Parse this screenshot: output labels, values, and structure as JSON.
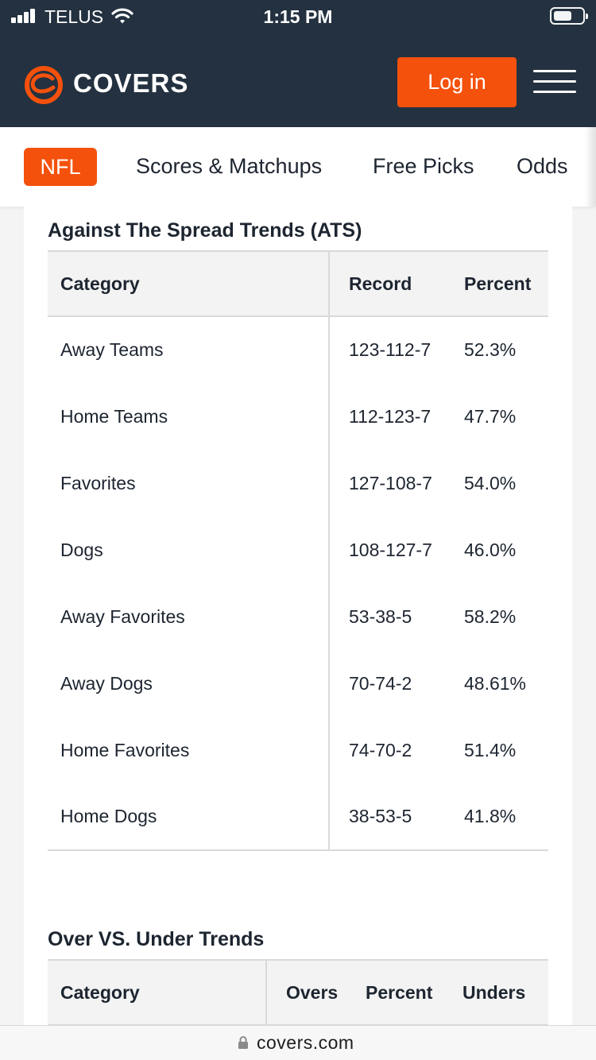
{
  "status_bar": {
    "carrier": "TELUS",
    "time": "1:15 PM"
  },
  "header": {
    "logo_text": "COVERS",
    "login_label": "Log in",
    "brand_color": "#f4510c",
    "bg_color": "#233140"
  },
  "nav": {
    "active": "NFL",
    "items": [
      "Scores & Matchups",
      "Free Picks",
      "Odds"
    ]
  },
  "ats": {
    "title": "Against The Spread Trends (ATS)",
    "columns": [
      "Category",
      "Record",
      "Percent"
    ],
    "rows": [
      [
        "Away Teams",
        "123-112-7",
        "52.3%"
      ],
      [
        "Home Teams",
        "112-123-7",
        "47.7%"
      ],
      [
        "Favorites",
        "127-108-7",
        "54.0%"
      ],
      [
        "Dogs",
        "108-127-7",
        "46.0%"
      ],
      [
        "Away Favorites",
        "53-38-5",
        "58.2%"
      ],
      [
        "Away Dogs",
        "70-74-2",
        "48.61%"
      ],
      [
        "Home Favorites",
        "74-70-2",
        "51.4%"
      ],
      [
        "Home Dogs",
        "38-53-5",
        "41.8%"
      ]
    ]
  },
  "ou": {
    "title": "Over VS. Under Trends",
    "columns": [
      "Category",
      "Overs",
      "Percent",
      "Unders"
    ]
  },
  "browser": {
    "url": "covers.com"
  }
}
